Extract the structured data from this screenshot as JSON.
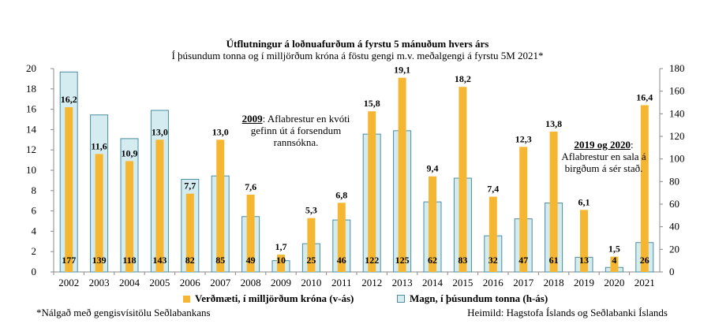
{
  "title": "Útflutningur  á loðnuafurðum á fyrstu 5 mánuðum hvers árs",
  "subtitle": "Í þúsundum tonna og í milljörðum  króna á föstu gengi m.v. meðalgengi  á fyrstu 5M 2021*",
  "footnote": "*Nálgað með gengisvísitölu Seðlabankans",
  "source": "Heimild:  Hagstofa Íslands og Seðlabanki Íslands",
  "annotations": [
    {
      "heading": "2009",
      "text": ": Aflabrestur en kvóti gefinn út á forsendum rannsókna."
    },
    {
      "heading": "2019 og 2020",
      "text": ": Aflabrestur en sala á birgðum á sér stað."
    }
  ],
  "colors": {
    "value_bar": "#f5b731",
    "volume_fill": "#d4ecf0",
    "volume_stroke": "#4a8ea0"
  },
  "chart_data": {
    "type": "bar",
    "categories": [
      "2002",
      "2003",
      "2004",
      "2005",
      "2006",
      "2007",
      "2008",
      "2009",
      "2010",
      "2011",
      "2012",
      "2013",
      "2014",
      "2015",
      "2016",
      "2017",
      "2018",
      "2019",
      "2020",
      "2021"
    ],
    "series": [
      {
        "name": "Verðmæti, í milljörðum króna (v-ás)",
        "axis": "left",
        "values": [
          16.2,
          11.6,
          10.9,
          13.0,
          7.7,
          13.0,
          7.6,
          1.7,
          5.3,
          6.8,
          15.8,
          19.1,
          9.4,
          18.2,
          7.4,
          12.3,
          13.8,
          6.1,
          1.5,
          16.4
        ],
        "labels": [
          "16,2",
          "11,6",
          "10,9",
          "13,0",
          "7,7",
          "13,0",
          "7,6",
          "1,7",
          "5,3",
          "6,8",
          "15,8",
          "19,1",
          "9,4",
          "18,2",
          "7,4",
          "12,3",
          "13,8",
          "6,1",
          "1,5",
          "16,4"
        ]
      },
      {
        "name": "Magn, í þúsundum tonna (h-ás)",
        "axis": "right",
        "values": [
          177,
          139,
          118,
          143,
          82,
          85,
          49,
          10,
          25,
          46,
          122,
          125,
          62,
          83,
          32,
          47,
          61,
          13,
          4,
          26
        ],
        "labels": [
          "177",
          "139",
          "118",
          "143",
          "82",
          "85",
          "49",
          "10",
          "25",
          "46",
          "122",
          "125",
          "62",
          "83",
          "32",
          "47",
          "61",
          "13",
          "4",
          "26"
        ]
      }
    ],
    "left_axis": {
      "range": [
        0,
        20
      ],
      "ticks": [
        "0",
        "2",
        "4",
        "6",
        "8",
        "10",
        "12",
        "14",
        "16",
        "18",
        "20"
      ]
    },
    "right_axis": {
      "range": [
        0,
        180
      ],
      "ticks": [
        "0",
        "20",
        "40",
        "60",
        "80",
        "100",
        "120",
        "140",
        "160",
        "180"
      ]
    },
    "legend_position": "bottom",
    "grid": false
  }
}
